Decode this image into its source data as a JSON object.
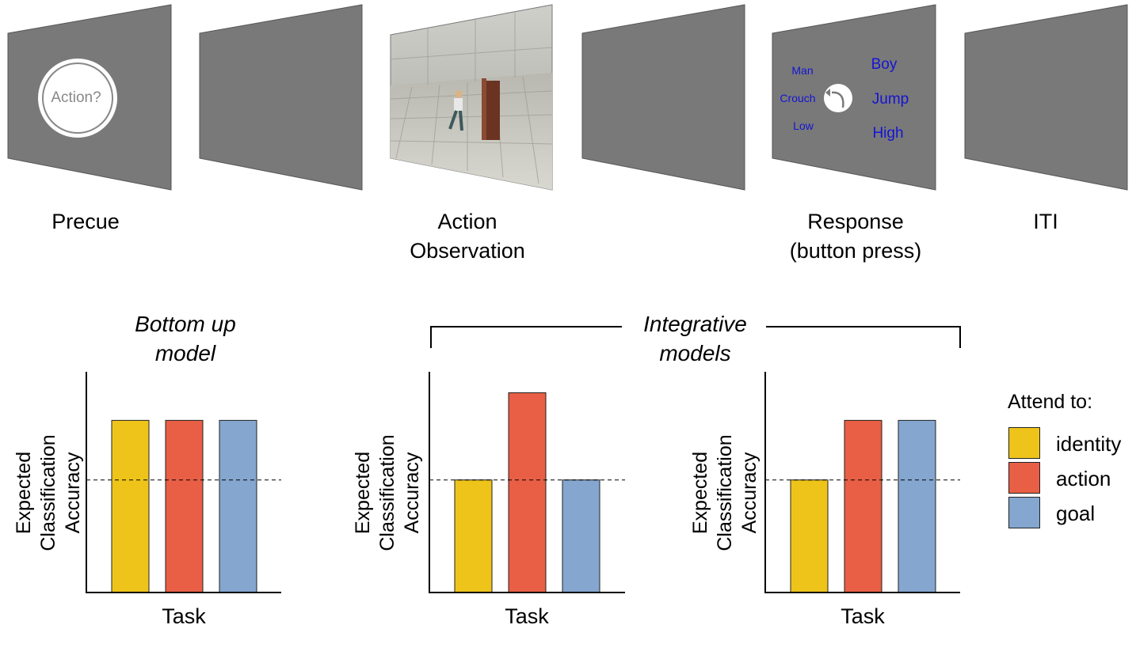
{
  "timeline": {
    "screens": [
      {
        "id": "precue",
        "label": "Precue",
        "cue_text": "Action?"
      },
      {
        "id": "blank1",
        "label": ""
      },
      {
        "id": "action",
        "label": "Action\nObservation"
      },
      {
        "id": "blank2",
        "label": ""
      },
      {
        "id": "response",
        "label": "Response\n(button press)",
        "left_options": [
          "Man",
          "Crouch",
          "Low"
        ],
        "right_options": [
          "Boy",
          "Jump",
          "High"
        ]
      },
      {
        "id": "iti",
        "label": "ITI"
      }
    ]
  },
  "models": {
    "bottom_up_title": "Bottom up\nmodel",
    "integrative_title": "Integrative\nmodels"
  },
  "chart_data": [
    {
      "type": "bar",
      "title": "Bottom up model",
      "xlabel": "Task",
      "ylabel": "Expected\nClassification\nAccuracy",
      "categories": [
        "identity",
        "action",
        "goal"
      ],
      "values": [
        0.78,
        0.78,
        0.78
      ],
      "chance": 0.51,
      "ylim": [
        0,
        1
      ]
    },
    {
      "type": "bar",
      "title": "",
      "xlabel": "Task",
      "ylabel": "Expected\nClassification\nAccuracy",
      "categories": [
        "identity",
        "action",
        "goal"
      ],
      "values": [
        0.51,
        0.905,
        0.51
      ],
      "chance": 0.51,
      "ylim": [
        0,
        1
      ]
    },
    {
      "type": "bar",
      "title": "",
      "xlabel": "Task",
      "ylabel": "Expected\nClassification\nAccuracy",
      "categories": [
        "identity",
        "action",
        "goal"
      ],
      "values": [
        0.51,
        0.78,
        0.78
      ],
      "chance": 0.51,
      "ylim": [
        0,
        1
      ]
    }
  ],
  "legend": {
    "title": "Attend to:",
    "items": [
      {
        "label": "identity",
        "color": "#EEC41A"
      },
      {
        "label": "action",
        "color": "#E85F45"
      },
      {
        "label": "goal",
        "color": "#84A6CF"
      }
    ]
  }
}
